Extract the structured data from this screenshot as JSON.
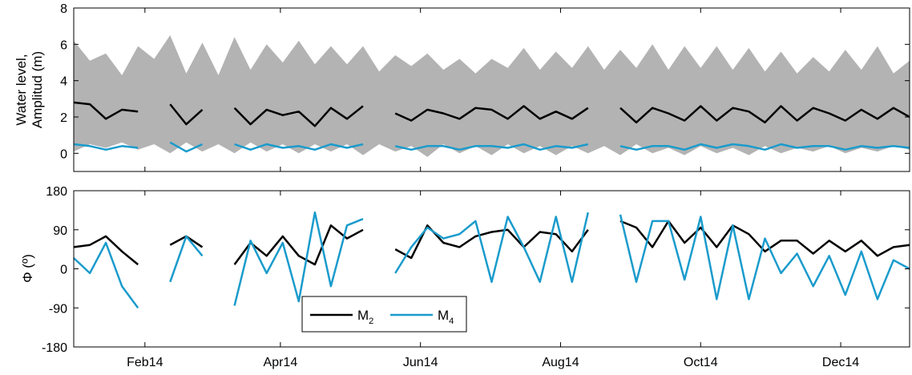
{
  "chart_data": [
    {
      "type": "line",
      "panel": "top",
      "ylabel_lines": [
        "Water level,",
        "Amplitud (m)"
      ],
      "ylim": [
        -1,
        8
      ],
      "yticks": [
        0,
        2,
        4,
        6,
        8
      ],
      "ytick_labels": [
        "0",
        "2",
        "4",
        "6",
        "8"
      ],
      "xlim": [
        "2014-01-01",
        "2014-12-31"
      ],
      "grid": false,
      "series": [
        {
          "name": "",
          "role": "water-level envelope (upper)",
          "color": "#b3b3b3",
          "x": [
            "2014-01-01",
            "2014-01-08",
            "2014-01-15",
            "2014-01-22",
            "2014-01-29",
            "2014-02-05",
            "2014-02-12",
            "2014-02-19",
            "2014-02-26",
            "2014-03-05",
            "2014-03-12",
            "2014-03-19",
            "2014-03-26",
            "2014-04-02",
            "2014-04-09",
            "2014-04-16",
            "2014-04-23",
            "2014-04-30",
            "2014-05-07",
            "2014-05-14",
            "2014-05-21",
            "2014-05-28",
            "2014-06-04",
            "2014-06-11",
            "2014-06-18",
            "2014-06-25",
            "2014-07-02",
            "2014-07-09",
            "2014-07-16",
            "2014-07-23",
            "2014-07-30",
            "2014-08-06",
            "2014-08-13",
            "2014-08-20",
            "2014-08-27",
            "2014-09-03",
            "2014-09-10",
            "2014-09-17",
            "2014-09-24",
            "2014-10-01",
            "2014-10-08",
            "2014-10-15",
            "2014-10-22",
            "2014-10-29",
            "2014-11-05",
            "2014-11-12",
            "2014-11-19",
            "2014-11-26",
            "2014-12-03",
            "2014-12-10",
            "2014-12-17",
            "2014-12-24",
            "2014-12-31"
          ],
          "values": [
            6.2,
            5.1,
            5.5,
            4.3,
            5.9,
            5.2,
            6.5,
            4.4,
            6.1,
            4.3,
            6.4,
            4.6,
            6.0,
            5.0,
            6.2,
            4.9,
            5.9,
            4.9,
            5.9,
            4.5,
            5.4,
            4.8,
            5.5,
            4.6,
            5.2,
            4.4,
            5.2,
            4.7,
            5.8,
            4.6,
            5.6,
            4.7,
            5.9,
            4.6,
            5.7,
            4.7,
            6.0,
            4.6,
            5.9,
            4.7,
            5.9,
            4.6,
            5.8,
            4.5,
            5.6,
            4.4,
            5.3,
            4.5,
            5.7,
            4.6,
            5.9,
            4.4,
            5.1
          ]
        },
        {
          "name": "",
          "role": "water-level envelope (lower)",
          "color": "#b3b3b3",
          "x": [
            "2014-01-01",
            "2014-01-08",
            "2014-01-15",
            "2014-01-22",
            "2014-01-29",
            "2014-02-05",
            "2014-02-12",
            "2014-02-19",
            "2014-02-26",
            "2014-03-05",
            "2014-03-12",
            "2014-03-19",
            "2014-03-26",
            "2014-04-02",
            "2014-04-09",
            "2014-04-16",
            "2014-04-23",
            "2014-04-30",
            "2014-05-07",
            "2014-05-14",
            "2014-05-21",
            "2014-05-28",
            "2014-06-04",
            "2014-06-11",
            "2014-06-18",
            "2014-06-25",
            "2014-07-02",
            "2014-07-09",
            "2014-07-16",
            "2014-07-23",
            "2014-07-30",
            "2014-08-06",
            "2014-08-13",
            "2014-08-20",
            "2014-08-27",
            "2014-09-03",
            "2014-09-10",
            "2014-09-17",
            "2014-09-24",
            "2014-10-01",
            "2014-10-08",
            "2014-10-15",
            "2014-10-22",
            "2014-10-29",
            "2014-11-05",
            "2014-11-12",
            "2014-11-19",
            "2014-11-26",
            "2014-12-03",
            "2014-12-10",
            "2014-12-17",
            "2014-12-24",
            "2014-12-31"
          ],
          "values": [
            0.1,
            0.5,
            0.3,
            0.6,
            0.2,
            0.5,
            0.0,
            0.6,
            0.1,
            0.5,
            0.0,
            0.6,
            0.1,
            0.5,
            0.0,
            0.5,
            0.1,
            0.5,
            -0.1,
            0.5,
            0.1,
            0.4,
            -0.2,
            0.5,
            0.0,
            0.4,
            -0.1,
            0.5,
            0.0,
            0.4,
            -0.1,
            0.4,
            0.0,
            0.4,
            -0.1,
            0.5,
            0.0,
            0.3,
            -0.1,
            0.4,
            0.0,
            0.3,
            -0.1,
            0.4,
            0.0,
            0.3,
            0.1,
            0.4,
            0.0,
            0.3,
            0.1,
            0.4,
            0.2
          ]
        },
        {
          "name": "M2",
          "color": "#000000",
          "x": [
            "2014-01-01",
            "2014-01-08",
            "2014-01-15",
            "2014-01-22",
            "2014-01-29",
            "2014-02-05",
            "2014-02-12",
            "2014-02-19",
            "2014-02-26",
            "2014-03-05",
            "2014-03-12",
            "2014-03-19",
            "2014-03-26",
            "2014-04-02",
            "2014-04-09",
            "2014-04-16",
            "2014-04-23",
            "2014-04-30",
            "2014-05-07",
            "2014-05-14",
            "2014-05-21",
            "2014-05-28",
            "2014-06-04",
            "2014-06-11",
            "2014-06-18",
            "2014-06-25",
            "2014-07-02",
            "2014-07-09",
            "2014-07-16",
            "2014-07-23",
            "2014-07-30",
            "2014-08-06",
            "2014-08-13",
            "2014-08-20",
            "2014-08-27",
            "2014-09-03",
            "2014-09-10",
            "2014-09-17",
            "2014-09-24",
            "2014-10-01",
            "2014-10-08",
            "2014-10-15",
            "2014-10-22",
            "2014-10-29",
            "2014-11-05",
            "2014-11-12",
            "2014-11-19",
            "2014-11-26",
            "2014-12-03",
            "2014-12-10",
            "2014-12-17",
            "2014-12-24",
            "2014-12-31"
          ],
          "values": [
            2.8,
            2.7,
            1.9,
            2.4,
            2.3,
            null,
            2.7,
            1.6,
            2.4,
            null,
            2.5,
            1.6,
            2.4,
            2.1,
            2.3,
            1.5,
            2.5,
            1.9,
            2.6,
            null,
            2.2,
            1.8,
            2.4,
            2.2,
            1.9,
            2.5,
            2.4,
            1.9,
            2.6,
            1.9,
            2.3,
            1.9,
            2.5,
            null,
            2.5,
            1.7,
            2.5,
            2.2,
            1.8,
            2.6,
            1.8,
            2.5,
            2.3,
            1.7,
            2.6,
            1.8,
            2.5,
            2.2,
            1.8,
            2.4,
            1.9,
            2.5,
            2.0
          ]
        },
        {
          "name": "M4",
          "color": "#1a9bcc",
          "x": [
            "2014-01-01",
            "2014-01-08",
            "2014-01-15",
            "2014-01-22",
            "2014-01-29",
            "2014-02-05",
            "2014-02-12",
            "2014-02-19",
            "2014-02-26",
            "2014-03-05",
            "2014-03-12",
            "2014-03-19",
            "2014-03-26",
            "2014-04-02",
            "2014-04-09",
            "2014-04-16",
            "2014-04-23",
            "2014-04-30",
            "2014-05-07",
            "2014-05-14",
            "2014-05-21",
            "2014-05-28",
            "2014-06-04",
            "2014-06-11",
            "2014-06-18",
            "2014-06-25",
            "2014-07-02",
            "2014-07-09",
            "2014-07-16",
            "2014-07-23",
            "2014-07-30",
            "2014-08-06",
            "2014-08-13",
            "2014-08-20",
            "2014-08-27",
            "2014-09-03",
            "2014-09-10",
            "2014-09-17",
            "2014-09-24",
            "2014-10-01",
            "2014-10-08",
            "2014-10-15",
            "2014-10-22",
            "2014-10-29",
            "2014-11-05",
            "2014-11-12",
            "2014-11-19",
            "2014-11-26",
            "2014-12-03",
            "2014-12-10",
            "2014-12-17",
            "2014-12-24",
            "2014-12-31"
          ],
          "values": [
            0.5,
            0.4,
            0.2,
            0.4,
            0.3,
            null,
            0.6,
            0.1,
            0.5,
            null,
            0.5,
            0.2,
            0.5,
            0.3,
            0.4,
            0.2,
            0.5,
            0.3,
            0.5,
            null,
            0.4,
            0.2,
            0.4,
            0.4,
            0.2,
            0.4,
            0.4,
            0.3,
            0.5,
            0.2,
            0.4,
            0.3,
            0.5,
            null,
            0.4,
            0.2,
            0.4,
            0.4,
            0.2,
            0.5,
            0.3,
            0.5,
            0.4,
            0.2,
            0.5,
            0.3,
            0.4,
            0.4,
            0.2,
            0.4,
            0.3,
            0.4,
            0.3
          ]
        }
      ]
    },
    {
      "type": "line",
      "panel": "bottom",
      "ylabel": "Φ (º)",
      "ylim": [
        -180,
        180
      ],
      "yticks": [
        -180,
        -90,
        0,
        90,
        180
      ],
      "ytick_labels": [
        "-180",
        "-90",
        "0",
        "90",
        "180"
      ],
      "xlim": [
        "2014-01-01",
        "2014-12-31"
      ],
      "xticks": [
        "2014-02-01",
        "2014-04-01",
        "2014-06-01",
        "2014-08-01",
        "2014-10-01",
        "2014-12-01"
      ],
      "xtick_labels": [
        "Feb14",
        "Apr14",
        "Jun14",
        "Aug14",
        "Oct14",
        "Dec14"
      ],
      "grid": false,
      "legend": {
        "position": "lower-center",
        "entries": [
          {
            "label": "M",
            "sub": "2",
            "color": "#000000"
          },
          {
            "label": "M",
            "sub": "4",
            "color": "#1a9bcc"
          }
        ]
      },
      "series": [
        {
          "name": "M2",
          "color": "#000000",
          "x": [
            "2014-01-01",
            "2014-01-08",
            "2014-01-15",
            "2014-01-22",
            "2014-01-29",
            "2014-02-05",
            "2014-02-12",
            "2014-02-19",
            "2014-02-26",
            "2014-03-05",
            "2014-03-12",
            "2014-03-19",
            "2014-03-26",
            "2014-04-02",
            "2014-04-09",
            "2014-04-16",
            "2014-04-23",
            "2014-04-30",
            "2014-05-07",
            "2014-05-14",
            "2014-05-21",
            "2014-05-28",
            "2014-06-04",
            "2014-06-11",
            "2014-06-18",
            "2014-06-25",
            "2014-07-02",
            "2014-07-09",
            "2014-07-16",
            "2014-07-23",
            "2014-07-30",
            "2014-08-06",
            "2014-08-13",
            "2014-08-20",
            "2014-08-27",
            "2014-09-03",
            "2014-09-10",
            "2014-09-17",
            "2014-09-24",
            "2014-10-01",
            "2014-10-08",
            "2014-10-15",
            "2014-10-22",
            "2014-10-29",
            "2014-11-05",
            "2014-11-12",
            "2014-11-19",
            "2014-11-26",
            "2014-12-03",
            "2014-12-10",
            "2014-12-17",
            "2014-12-24",
            "2014-12-31"
          ],
          "values": [
            50,
            55,
            75,
            40,
            10,
            null,
            55,
            75,
            50,
            null,
            10,
            60,
            30,
            75,
            30,
            10,
            100,
            70,
            90,
            null,
            45,
            25,
            100,
            60,
            50,
            75,
            85,
            90,
            50,
            85,
            80,
            40,
            90,
            null,
            110,
            95,
            50,
            110,
            60,
            95,
            50,
            100,
            80,
            40,
            65,
            65,
            35,
            65,
            40,
            65,
            30,
            50,
            55
          ]
        },
        {
          "name": "M4",
          "color": "#1a9bcc",
          "x": [
            "2014-01-01",
            "2014-01-08",
            "2014-01-15",
            "2014-01-22",
            "2014-01-29",
            "2014-02-05",
            "2014-02-12",
            "2014-02-19",
            "2014-02-26",
            "2014-03-05",
            "2014-03-12",
            "2014-03-19",
            "2014-03-26",
            "2014-04-02",
            "2014-04-09",
            "2014-04-16",
            "2014-04-23",
            "2014-04-30",
            "2014-05-07",
            "2014-05-14",
            "2014-05-21",
            "2014-05-28",
            "2014-06-04",
            "2014-06-11",
            "2014-06-18",
            "2014-06-25",
            "2014-07-02",
            "2014-07-09",
            "2014-07-16",
            "2014-07-23",
            "2014-07-30",
            "2014-08-06",
            "2014-08-13",
            "2014-08-20",
            "2014-08-27",
            "2014-09-03",
            "2014-09-10",
            "2014-09-17",
            "2014-09-24",
            "2014-10-01",
            "2014-10-08",
            "2014-10-15",
            "2014-10-22",
            "2014-10-29",
            "2014-11-05",
            "2014-11-12",
            "2014-11-19",
            "2014-11-26",
            "2014-12-03",
            "2014-12-10",
            "2014-12-17",
            "2014-12-24",
            "2014-12-31"
          ],
          "values": [
            25,
            -10,
            60,
            -40,
            -90,
            null,
            -30,
            75,
            30,
            null,
            -85,
            65,
            -10,
            60,
            -75,
            130,
            -40,
            100,
            115,
            null,
            -10,
            50,
            95,
            70,
            80,
            110,
            -30,
            120,
            50,
            -30,
            120,
            -30,
            130,
            null,
            125,
            -30,
            110,
            110,
            -25,
            120,
            -70,
            100,
            -70,
            70,
            -10,
            35,
            -40,
            30,
            -60,
            40,
            -70,
            20,
            0
          ]
        }
      ]
    }
  ]
}
